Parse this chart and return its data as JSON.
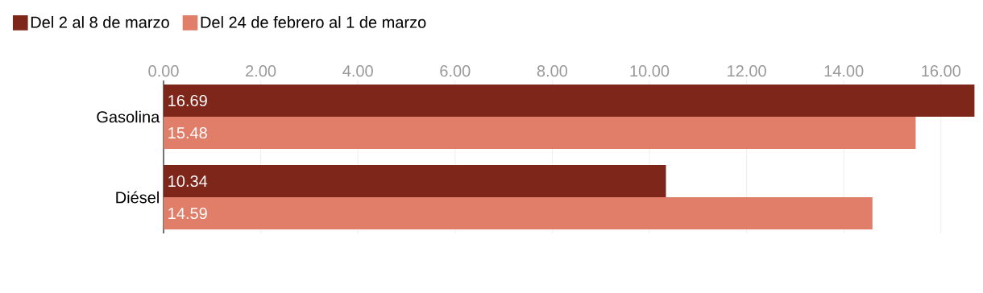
{
  "chart_data": {
    "type": "bar",
    "orientation": "horizontal",
    "categories": [
      "Gasolina",
      "Diésel"
    ],
    "series": [
      {
        "name": "Del 2 al 8 de marzo",
        "color": "#7f261b",
        "values": [
          16.69,
          10.34
        ]
      },
      {
        "name": "Del 24 de febrero al 1 de marzo",
        "color": "#e07e6a",
        "values": [
          15.48,
          14.59
        ]
      }
    ],
    "xlim": [
      0,
      16.7
    ],
    "xticks": [
      {
        "value": 0,
        "label": "0.00"
      },
      {
        "value": 2,
        "label": "2.00"
      },
      {
        "value": 4,
        "label": "4.00"
      },
      {
        "value": 6,
        "label": "6.00"
      },
      {
        "value": 8,
        "label": "8.00"
      },
      {
        "value": 10,
        "label": "10.00"
      },
      {
        "value": 12,
        "label": "12.00"
      },
      {
        "value": 14,
        "label": "14.00"
      },
      {
        "value": 16,
        "label": "16.00"
      }
    ],
    "grid": "x",
    "legend": "top left",
    "data_labels": true
  }
}
